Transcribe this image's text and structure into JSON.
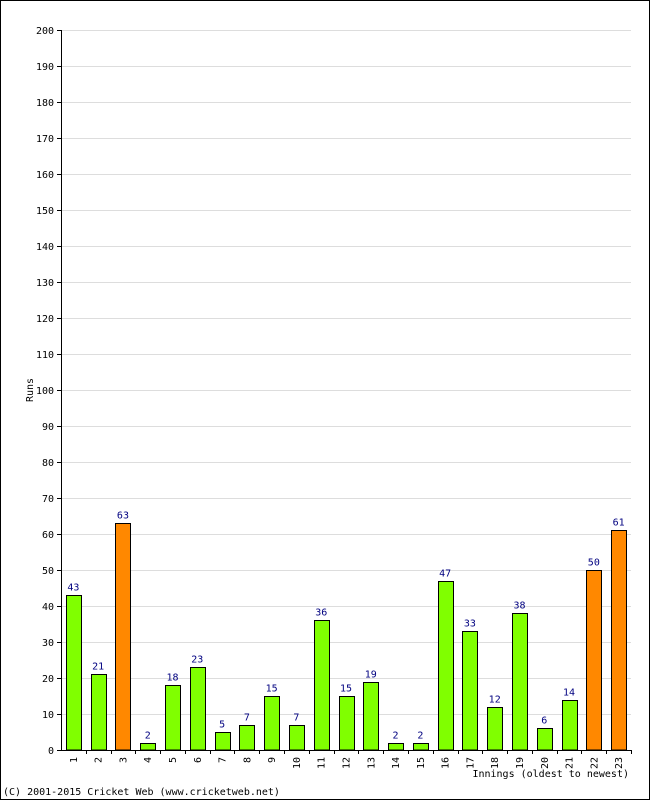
{
  "chart_data": {
    "type": "bar",
    "title": "",
    "xlabel": "Innings (oldest to newest)",
    "ylabel": "Runs",
    "ylim": [
      0,
      200
    ],
    "y_ticks": [
      0,
      10,
      20,
      30,
      40,
      50,
      60,
      70,
      80,
      90,
      100,
      110,
      120,
      130,
      140,
      150,
      160,
      170,
      180,
      190,
      200
    ],
    "grid": true,
    "categories": [
      "1",
      "2",
      "3",
      "4",
      "5",
      "6",
      "7",
      "8",
      "9",
      "10",
      "11",
      "12",
      "13",
      "14",
      "15",
      "16",
      "17",
      "18",
      "19",
      "20",
      "21",
      "22",
      "23"
    ],
    "values": [
      43,
      21,
      63,
      2,
      18,
      23,
      5,
      7,
      15,
      7,
      36,
      15,
      19,
      2,
      2,
      47,
      33,
      12,
      38,
      6,
      14,
      50,
      61
    ],
    "highlight_threshold": 50,
    "colors": {
      "bar_normal": "#80ff00",
      "bar_highlight": "#ff8800",
      "bar_stroke": "#000000",
      "grid": "#dddddd",
      "value_label": "#000080"
    }
  },
  "footer": {
    "copyright": "(C) 2001-2015 Cricket Web (www.cricketweb.net)"
  }
}
